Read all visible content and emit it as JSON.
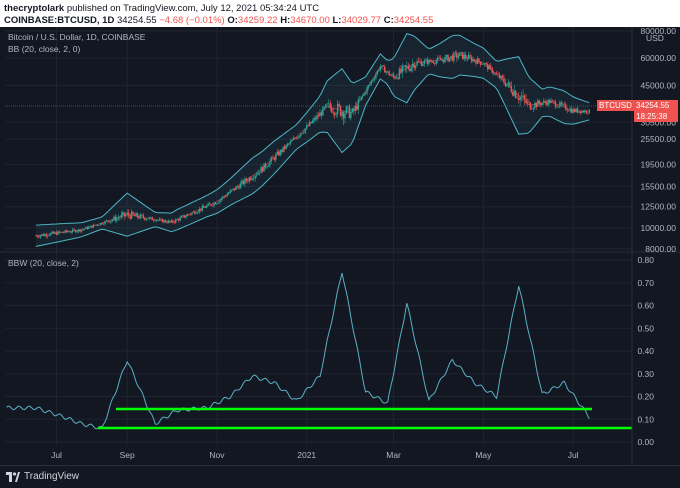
{
  "header": {
    "author": "thecryptolark",
    "published_text": "published on TradingView.com, July 12, 2021 05:34:24 UTC",
    "symbol": "COINBASE:BTCUSD, 1D",
    "last": "34254.55",
    "change": "−4.68 (−0.01%)",
    "open_label": "O:",
    "open": "34259.22",
    "high_label": "H:",
    "high": "34670.00",
    "low_label": "L:",
    "low": "34029.77",
    "close_label": "C:",
    "close": "34254.55"
  },
  "panes": {
    "price": {
      "title": "Bitcoin / U.S. Dollar, 1D, COINBASE",
      "indicator": "BB (20, close, 2, 0)",
      "currency": "USD"
    },
    "bbw": {
      "indicator": "BBW (20, close, 2)"
    }
  },
  "price_tag": {
    "symbol": "BTCUSD",
    "price": "34254.55",
    "countdown": "18:25:38"
  },
  "colors": {
    "background": "#131722",
    "up_candle": "#26a69a",
    "down_candle": "#ef5350",
    "band": "#4db6c6",
    "bbw_line": "#5ab0c4",
    "annotation": "#00ff00"
  },
  "footer": {
    "brand": "TradingView",
    "logo_icon": "tradingview-logo-icon"
  },
  "chart_data": [
    {
      "type": "line",
      "xlabel": "",
      "ylabel": "",
      "y_scale": "log",
      "ylim": [
        8000,
        80000
      ],
      "y_ticks": [
        "8000.00",
        "10000.00",
        "12500.00",
        "15500.00",
        "19500.00",
        "25500.00",
        "30500.00",
        "45000.00",
        "60000.00",
        "80000.00"
      ],
      "x_ticks": [
        "Jul",
        "Sep",
        "Nov",
        "2021",
        "Mar",
        "May",
        "Jul"
      ],
      "x": [
        "2020-07-01",
        "2020-08-01",
        "2020-09-01",
        "2020-10-01",
        "2020-11-01",
        "2020-12-01",
        "2021-01-01",
        "2021-01-15",
        "2021-02-01",
        "2021-02-20",
        "2021-03-01",
        "2021-03-15",
        "2021-04-01",
        "2021-04-15",
        "2021-05-01",
        "2021-05-15",
        "2021-06-01",
        "2021-06-15",
        "2021-07-01",
        "2021-07-12"
      ],
      "series": [
        {
          "values": [
            9200,
            9800,
            11500,
            10600,
            13200,
            18500,
            28900,
            36000,
            33500,
            55000,
            49000,
            57000,
            58700,
            62000,
            57000,
            47000,
            36500,
            38000,
            34500,
            34254.55
          ]
        }
      ],
      "grid": true,
      "legend": "none"
    },
    {
      "type": "line",
      "xlabel": "",
      "ylabel": "",
      "ylim": [
        0,
        0.8
      ],
      "y_ticks": [
        "0.00",
        "0.10",
        "0.20",
        "0.30",
        "0.40",
        "0.50",
        "0.60",
        "0.70",
        "0.80"
      ],
      "x_ticks": [
        "Jul",
        "Sep",
        "Nov",
        "2021",
        "Mar",
        "May",
        "Jul"
      ],
      "x": [
        "2020-07-01",
        "2020-07-20",
        "2020-08-01",
        "2020-08-15",
        "2020-09-01",
        "2020-09-20",
        "2020-10-05",
        "2020-10-25",
        "2020-11-10",
        "2020-11-25",
        "2020-12-10",
        "2020-12-25",
        "2021-01-10",
        "2021-01-25",
        "2021-02-10",
        "2021-02-25",
        "2021-03-10",
        "2021-03-25",
        "2021-04-10",
        "2021-04-25",
        "2021-05-10",
        "2021-05-25",
        "2021-06-10",
        "2021-06-25",
        "2021-07-12"
      ],
      "series": [
        {
          "values": [
            0.15,
            0.11,
            0.08,
            0.06,
            0.36,
            0.08,
            0.14,
            0.15,
            0.2,
            0.29,
            0.26,
            0.18,
            0.29,
            0.75,
            0.22,
            0.17,
            0.61,
            0.18,
            0.36,
            0.26,
            0.2,
            0.69,
            0.21,
            0.26,
            0.11
          ]
        }
      ],
      "grid": true,
      "legend": "none"
    }
  ]
}
